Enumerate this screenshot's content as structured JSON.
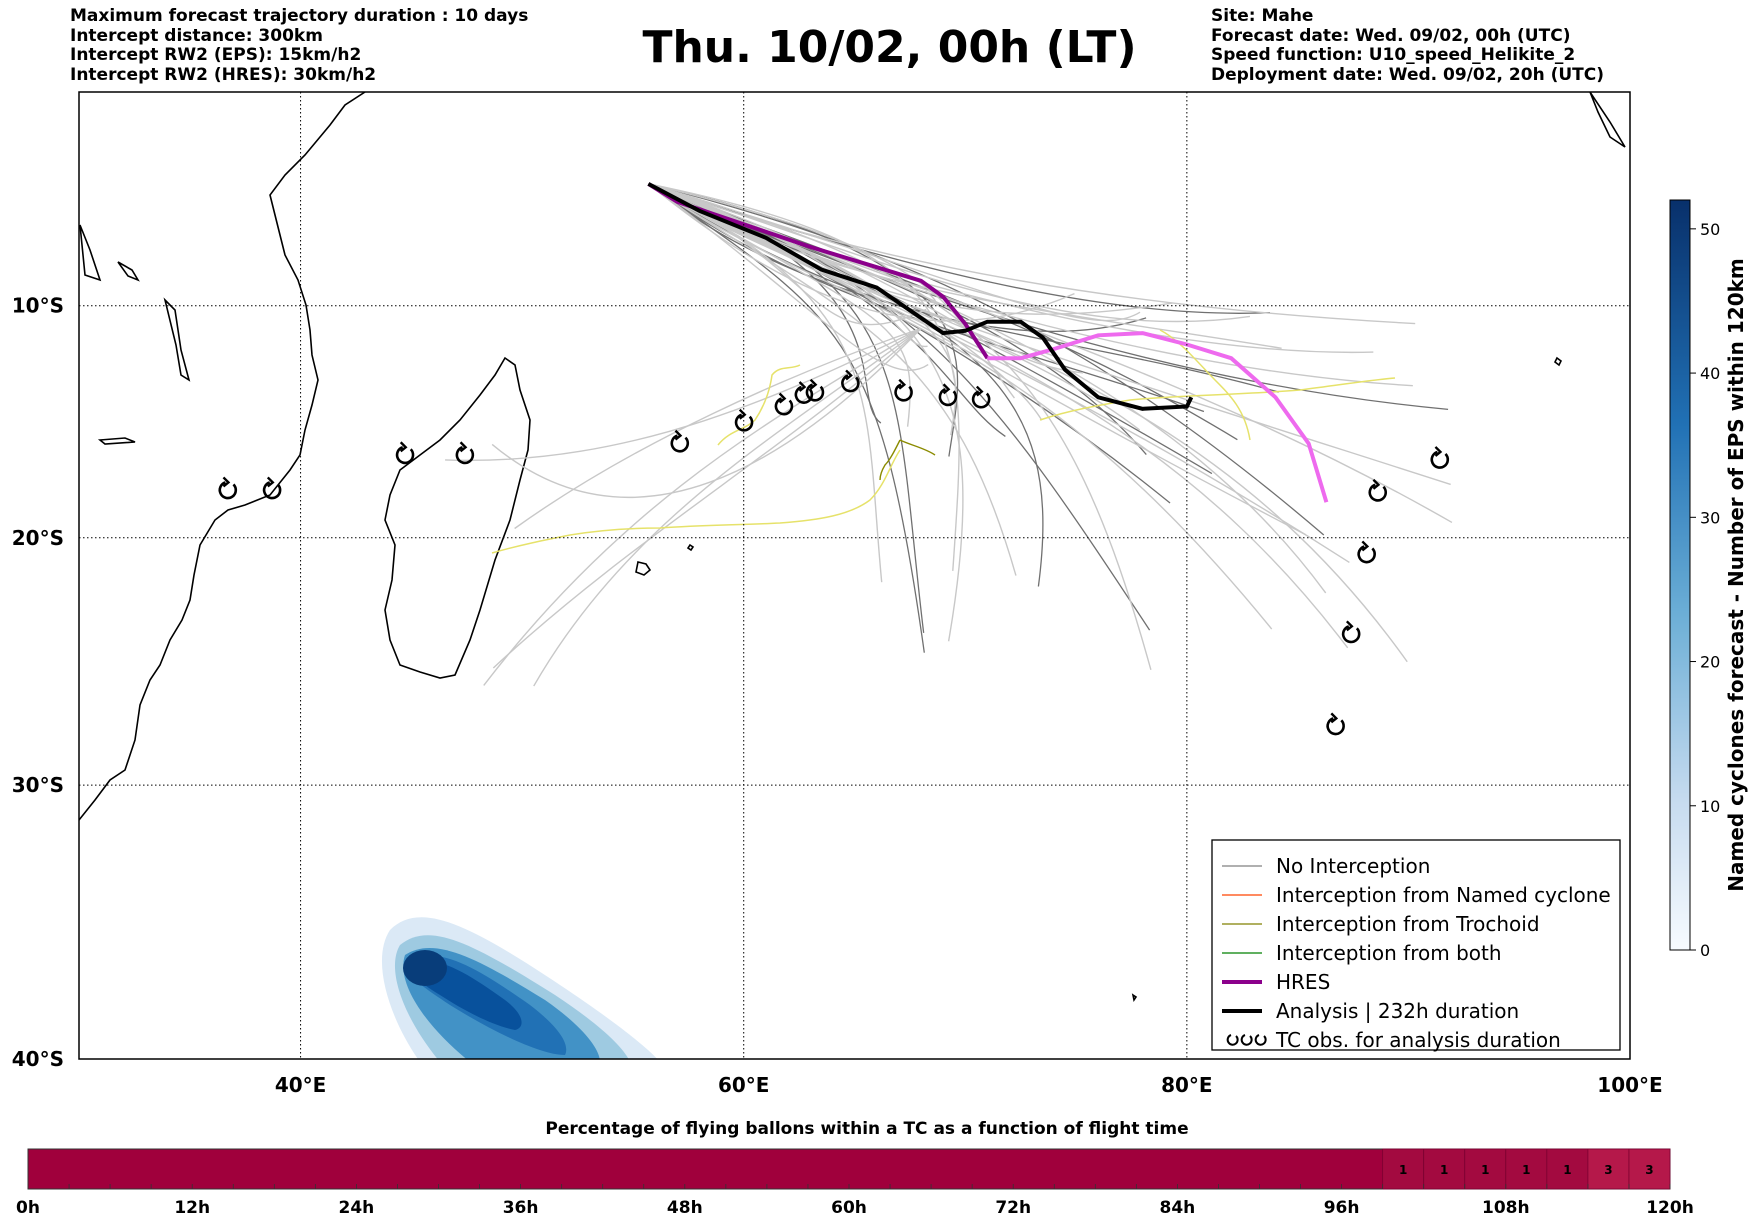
{
  "header_left": [
    "Maximum forecast trajectory duration : 10 days",
    "Intercept distance: 300km",
    "Intercept RW2 (EPS):  15km/h2",
    "Intercept RW2 (HRES): 30km/h2"
  ],
  "header_right": [
    "Site: Mahe",
    "Forecast date: Wed. 09/02, 00h (UTC)",
    "Speed function: U10_speed_Helikite_2",
    "Deployment date: Wed. 09/02, 20h (UTC)"
  ],
  "title": "Thu. 10/02, 00h (LT)",
  "map": {
    "lon_ticks": [
      {
        "label": "40°E",
        "value": 40
      },
      {
        "label": "60°E",
        "value": 60
      },
      {
        "label": "80°E",
        "value": 80
      },
      {
        "label": "100°E",
        "value": 100
      }
    ],
    "lat_ticks": [
      {
        "label": "10°S",
        "value": -10
      },
      {
        "label": "20°S",
        "value": -20
      },
      {
        "label": "30°S",
        "value": -30
      },
      {
        "label": "40°S",
        "value": -40
      }
    ],
    "lon_range": [
      30,
      100
    ],
    "lat_range": [
      -40,
      -0.5
    ]
  },
  "legend": {
    "placement": "bottom-right",
    "items": [
      {
        "label": "No Interception",
        "color": "#808080",
        "style": "thin"
      },
      {
        "label": "Interception from Named cyclone",
        "color": "#ff4500",
        "style": "thin"
      },
      {
        "label": "Interception from Trochoid",
        "color": "#808000",
        "style": "thin"
      },
      {
        "label": "Interception from both",
        "color": "#008000",
        "style": "thin"
      },
      {
        "label": "HRES",
        "color": "#8b008b",
        "style": "thick"
      },
      {
        "label": "Analysis | 232h duration",
        "color": "#000000",
        "style": "thick"
      },
      {
        "label": "TC obs. for analysis duration",
        "color": "#000000",
        "style": "symbol"
      }
    ]
  },
  "colorbar": {
    "label": "Named cyclones forecast - Number of EPS within 120km",
    "ticks": [
      "0",
      "10",
      "20",
      "30",
      "40",
      "50"
    ],
    "range": [
      0,
      52
    ]
  },
  "time_bar": {
    "title": "Percentage of flying ballons within a TC as a function of flight time",
    "ticks": [
      "0h",
      "12h",
      "24h",
      "36h",
      "48h",
      "60h",
      "72h",
      "84h",
      "96h",
      "108h",
      "120h"
    ],
    "max_hours": 120,
    "cells": [
      {
        "from": 99,
        "to": 102,
        "value": "1"
      },
      {
        "from": 102,
        "to": 105,
        "value": "1"
      },
      {
        "from": 105,
        "to": 108,
        "value": "1"
      },
      {
        "from": 108,
        "to": 111,
        "value": "1"
      },
      {
        "from": 111,
        "to": 114,
        "value": "1"
      },
      {
        "from": 114,
        "to": 117,
        "value": "3"
      },
      {
        "from": 117,
        "to": 120,
        "value": "3"
      }
    ]
  },
  "tc_observations": [
    {
      "lon": 36.7,
      "lat": -18.0
    },
    {
      "lon": 38.7,
      "lat": -18.0
    },
    {
      "lon": 44.7,
      "lat": -16.5
    },
    {
      "lon": 47.4,
      "lat": -16.5
    },
    {
      "lon": 57.1,
      "lat": -16.0
    },
    {
      "lon": 60.0,
      "lat": -15.1
    },
    {
      "lon": 61.8,
      "lat": -14.4
    },
    {
      "lon": 62.7,
      "lat": -13.9
    },
    {
      "lon": 63.2,
      "lat": -13.8
    },
    {
      "lon": 64.8,
      "lat": -13.4
    },
    {
      "lon": 67.2,
      "lat": -13.8
    },
    {
      "lon": 69.2,
      "lat": -14.0
    },
    {
      "lon": 70.7,
      "lat": -14.1
    },
    {
      "lon": 88.6,
      "lat": -18.1
    },
    {
      "lon": 88.1,
      "lat": -20.7
    },
    {
      "lon": 87.4,
      "lat": -24.0
    },
    {
      "lon": 86.7,
      "lat": -27.7
    },
    {
      "lon": 91.4,
      "lat": -16.7
    }
  ],
  "hres_track": [
    [
      55.7,
      -4.6
    ],
    [
      57.0,
      -5.4
    ],
    [
      60.0,
      -6.4
    ],
    [
      63.0,
      -7.4
    ],
    [
      66.0,
      -8.3
    ],
    [
      68.0,
      -8.9
    ],
    [
      69.0,
      -9.6
    ],
    [
      70.0,
      -10.8
    ],
    [
      71.0,
      -12.3
    ],
    [
      72.5,
      -12.3
    ],
    [
      74.0,
      -11.9
    ],
    [
      76.0,
      -11.3
    ],
    [
      78.0,
      -11.2
    ],
    [
      80.0,
      -11.7
    ],
    [
      82.0,
      -12.3
    ],
    [
      84.0,
      -14.0
    ],
    [
      85.5,
      -16.0
    ],
    [
      86.3,
      -18.5
    ]
  ],
  "analysis_track": [
    [
      55.7,
      -4.6
    ],
    [
      58.0,
      -5.8
    ],
    [
      61.0,
      -7.0
    ],
    [
      63.5,
      -8.4
    ],
    [
      66.0,
      -9.2
    ],
    [
      67.5,
      -10.2
    ],
    [
      69.0,
      -11.2
    ],
    [
      70.0,
      -11.1
    ],
    [
      71.0,
      -10.7
    ],
    [
      72.5,
      -10.7
    ],
    [
      73.5,
      -11.4
    ],
    [
      74.5,
      -12.8
    ],
    [
      76.0,
      -14.0
    ],
    [
      78.0,
      -14.5
    ],
    [
      80.0,
      -14.4
    ],
    [
      80.2,
      -14.0
    ]
  ]
}
